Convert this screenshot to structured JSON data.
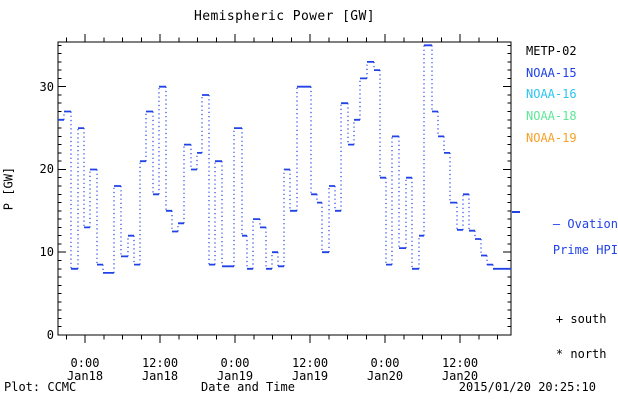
{
  "title": "Hemispheric Power [GW]",
  "axes": {
    "y_title": "P [GW]",
    "x_title": "Date and Time",
    "y_major_ticks": [
      0,
      10,
      20,
      30
    ],
    "y_minor_step_gw": 1,
    "x_minor_step_hours": 3,
    "x_major_tick_labels": [
      {
        "hours": 0,
        "time": "0:00",
        "date": "Jan18"
      },
      {
        "hours": 12,
        "time": "12:00",
        "date": "Jan18"
      },
      {
        "hours": 24,
        "time": "0:00",
        "date": "Jan19"
      },
      {
        "hours": 36,
        "time": "12:00",
        "date": "Jan19"
      },
      {
        "hours": 48,
        "time": "0:00",
        "date": "Jan20"
      },
      {
        "hours": 60,
        "time": "12:00",
        "date": "Jan20"
      }
    ]
  },
  "legend": {
    "satellites": [
      {
        "label": "METP-02",
        "color": "#000000"
      },
      {
        "label": "NOAA-15",
        "color": "#2042e6"
      },
      {
        "label": "NOAA-16",
        "color": "#2cc4f0"
      },
      {
        "label": "NOAA-18",
        "color": "#5ce896"
      },
      {
        "label": "NOAA-19",
        "color": "#f5a127"
      }
    ],
    "ovation": {
      "dash": "—",
      "line1": "Ovation",
      "line2": "Prime HPI",
      "color": "#2042e6"
    },
    "markers": [
      {
        "symbol": "+",
        "label": "south"
      },
      {
        "symbol": "*",
        "label": "north"
      }
    ]
  },
  "footer": {
    "left": "Plot: CCMC",
    "right": "2015/01/20 20:25:10"
  },
  "chart_data": {
    "type": "line",
    "style": "histogram-step; solid step tops, dotted vertical connectors",
    "series_name": "Ovation Prime HPI (NOAA-15)",
    "line_color": "#2042e6",
    "title": "Hemispheric Power [GW]",
    "xlabel": "Date and Time",
    "ylabel": "P [GW]",
    "x_unit": "hours from 2015-01-18 00:00 UT",
    "y_unit": "GW",
    "xlim_hours": [
      -4.32,
      68.16
    ],
    "ylim": [
      0,
      35.4
    ],
    "grid": false,
    "t_hours": [
      -4.32,
      -3.36,
      -2.24,
      -1.12,
      -0.16,
      0.8,
      1.92,
      2.88,
      4.64,
      5.76,
      6.88,
      7.84,
      8.8,
      9.76,
      10.88,
      11.84,
      12.96,
      13.92,
      14.88,
      15.84,
      16.96,
      17.92,
      18.72,
      19.84,
      20.8,
      21.92,
      23.84,
      25.12,
      25.92,
      26.88,
      28.0,
      28.96,
      29.92,
      30.88,
      31.84,
      32.8,
      33.92,
      36.16,
      37.12,
      37.92,
      39.04,
      40.0,
      40.96,
      42.08,
      43.04,
      44.0,
      45.12,
      46.24,
      47.2,
      48.16,
      49.12,
      50.24,
      51.36,
      52.32,
      53.44,
      54.24,
      55.52,
      56.48,
      57.44,
      58.4,
      59.52,
      60.48,
      61.44,
      62.4,
      63.36,
      64.32,
      65.28
    ],
    "p_gw": [
      26,
      27,
      8,
      25,
      13,
      20,
      8.5,
      7.5,
      18,
      9.5,
      12,
      8.5,
      21,
      27,
      17,
      30,
      15,
      12.5,
      13.5,
      23,
      20,
      22,
      29,
      8.5,
      21,
      8.3,
      25,
      12,
      8,
      14,
      13,
      8,
      10,
      8.3,
      20,
      15,
      30,
      17,
      16,
      10,
      18,
      15,
      28,
      23,
      26,
      31,
      33,
      32,
      19,
      8.5,
      24,
      10.5,
      19,
      8,
      12,
      35,
      27,
      24,
      22,
      16,
      12.7,
      17,
      12.6,
      11.6,
      9.6,
      8.5,
      8
    ],
    "t_end_hours": 68.16
  }
}
